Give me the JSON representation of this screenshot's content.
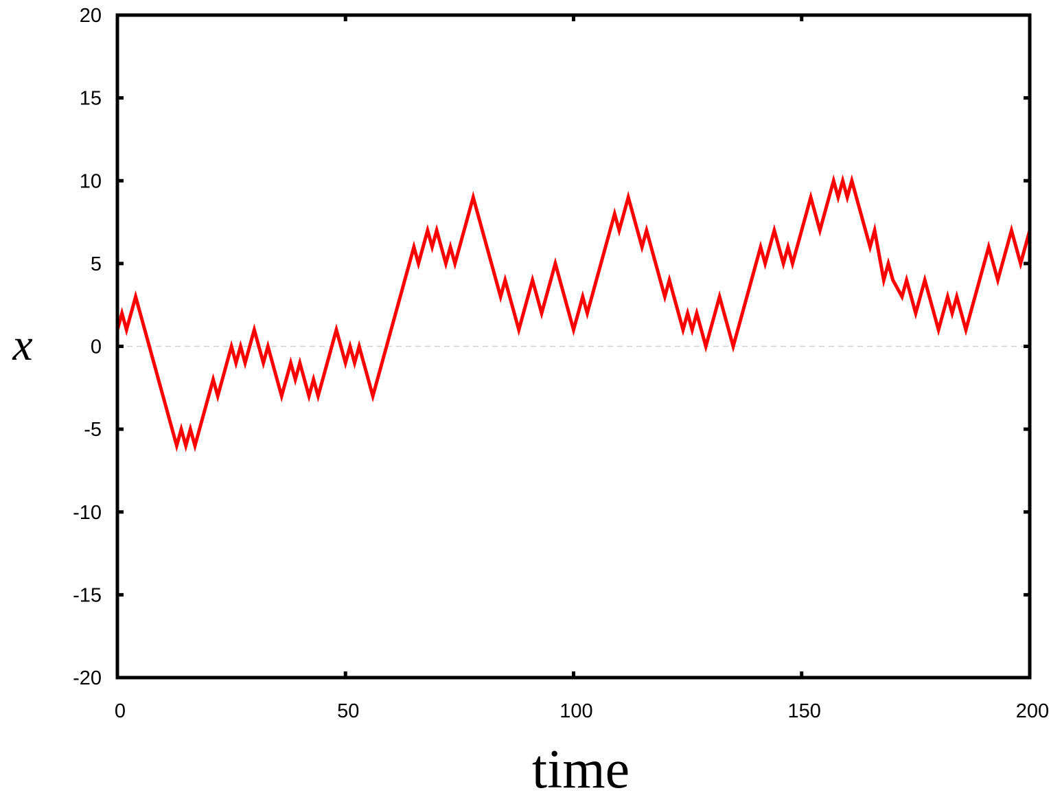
{
  "chart_data": {
    "type": "line",
    "title": "",
    "xlabel": "time",
    "ylabel": "x",
    "xlim": [
      0,
      200
    ],
    "ylim": [
      -20,
      20
    ],
    "xticks": [
      "0",
      "50",
      "100",
      "150",
      "200"
    ],
    "yticks": [
      "-20",
      "-15",
      "-10",
      "-5",
      "0",
      "5",
      "10",
      "15",
      "20"
    ],
    "xtick_values": [
      0,
      50,
      100,
      150,
      200
    ],
    "ytick_values": [
      -20,
      -15,
      -10,
      -5,
      0,
      5,
      10,
      15,
      20
    ],
    "grid": false,
    "reference_line": {
      "y": 0,
      "style": "dashed",
      "color": "#d0d0d0"
    },
    "series": [
      {
        "color": "#ff0000",
        "x": [
          0,
          1,
          2,
          4,
          13,
          14,
          15,
          16,
          17,
          21,
          22,
          25,
          26,
          27,
          28,
          30,
          32,
          33,
          36,
          38,
          39,
          40,
          42,
          43,
          44,
          48,
          50,
          51,
          52,
          53,
          56,
          65,
          66,
          68,
          69,
          70,
          72,
          73,
          74,
          78,
          84,
          85,
          88,
          91,
          93,
          96,
          100,
          102,
          103,
          109,
          110,
          112,
          115,
          116,
          120,
          121,
          124,
          125,
          126,
          127,
          129,
          132,
          135,
          141,
          142,
          144,
          146,
          147,
          148,
          152,
          154,
          157,
          158,
          159,
          160,
          161,
          165,
          166,
          168,
          169,
          170,
          172,
          173,
          174,
          175,
          177,
          180,
          182,
          183,
          184,
          186,
          191,
          193,
          196,
          198,
          200
        ],
        "y": [
          1,
          2,
          1,
          3,
          -6,
          -5,
          -6,
          -5,
          -6,
          -2,
          -3,
          0,
          -1,
          0,
          -1,
          1,
          -1,
          0,
          -3,
          -1,
          -2,
          -1,
          -3,
          -2,
          -3,
          1,
          -1,
          0,
          -1,
          0,
          -3,
          6,
          5,
          7,
          6,
          7,
          5,
          6,
          5,
          9,
          3,
          4,
          1,
          4,
          2,
          5,
          1,
          3,
          2,
          8,
          7,
          9,
          6,
          7,
          3,
          4,
          1,
          2,
          1,
          2,
          0,
          3,
          0,
          6,
          5,
          7,
          5,
          6,
          5,
          9,
          7,
          10,
          9,
          10,
          9,
          10,
          6,
          7,
          4,
          5,
          4,
          3,
          4,
          3,
          2,
          4,
          1,
          3,
          2,
          3,
          1,
          6,
          4,
          7,
          5,
          7
        ]
      }
    ]
  }
}
